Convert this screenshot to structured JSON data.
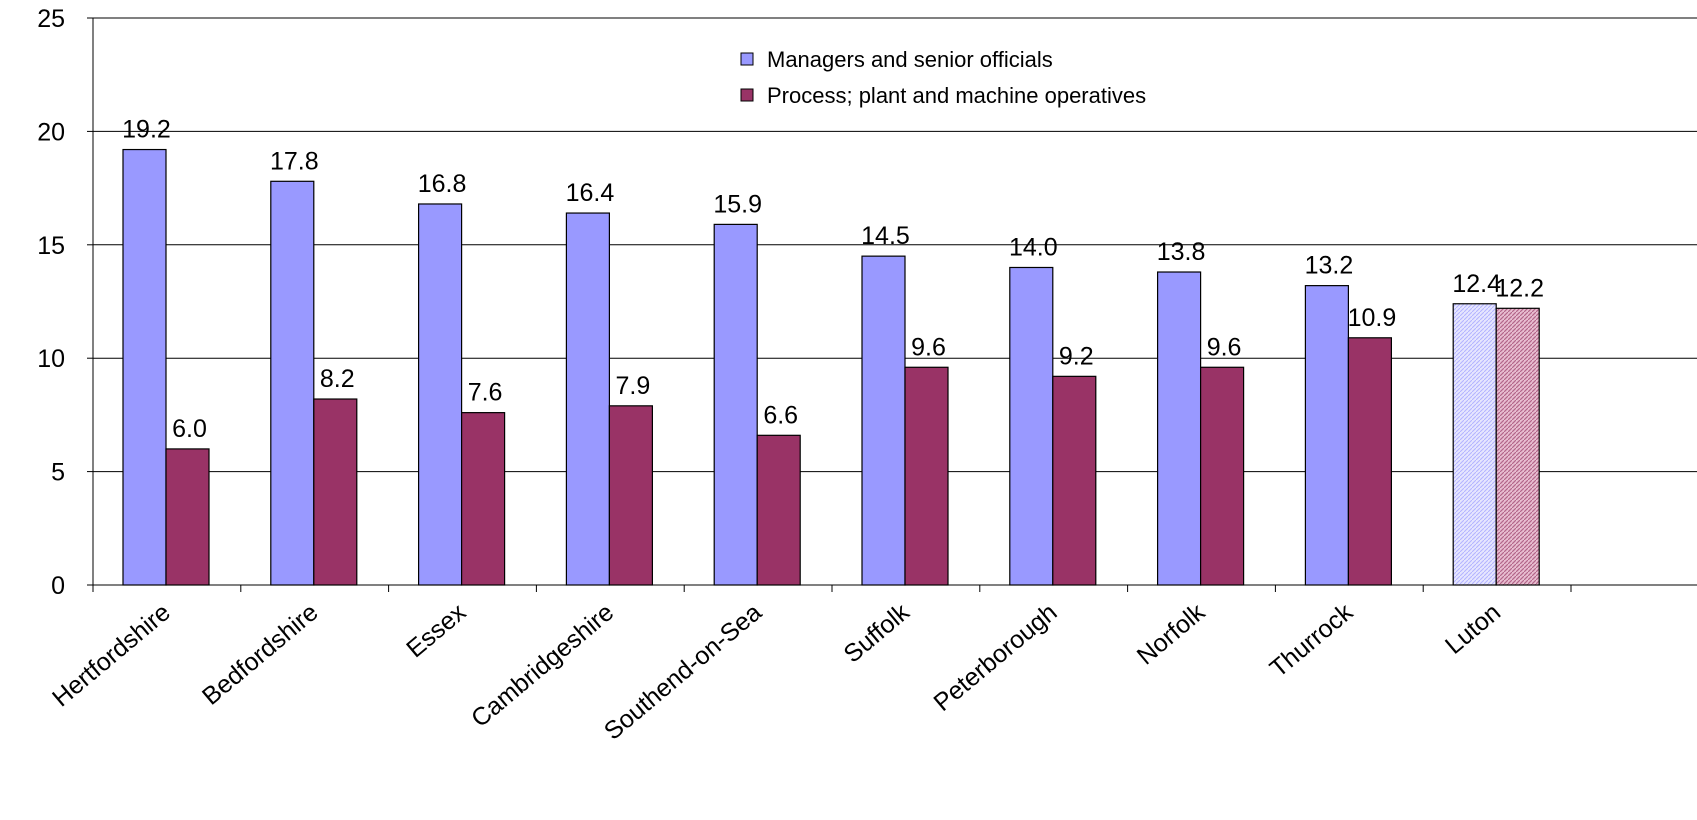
{
  "chart_data": {
    "type": "bar",
    "title": "",
    "xlabel": "",
    "ylabel": "",
    "ylim": [
      0,
      25
    ],
    "yticks": [
      0,
      5,
      10,
      15,
      20,
      25
    ],
    "grid": true,
    "legend_position": "top-center",
    "categories": [
      "Hertfordshire",
      "Bedfordshire",
      "Essex",
      "Cambridgeshire",
      "Southend-on-Sea",
      "Suffolk",
      "Peterborough",
      "Norfolk",
      "Thurrock",
      "Luton"
    ],
    "series": [
      {
        "name": "Managers and senior officials",
        "color": "#9999ff",
        "highlight_color": "#d9d9ff",
        "values": [
          19.2,
          17.8,
          16.8,
          16.4,
          15.9,
          14.5,
          14.0,
          13.8,
          13.2,
          12.4
        ],
        "labels": [
          "19.2",
          "17.8",
          "16.8",
          "16.4",
          "15.9",
          "14.5",
          "14.0",
          "13.8",
          "13.2",
          "12.4"
        ]
      },
      {
        "name": "Process; plant and machine operatives",
        "color": "#993366",
        "highlight_color": "#dba8bf",
        "values": [
          6.0,
          8.2,
          7.6,
          7.9,
          6.6,
          9.6,
          9.2,
          9.6,
          10.9,
          12.2
        ],
        "labels": [
          "6.0",
          "8.2",
          "7.6",
          "7.9",
          "6.6",
          "9.6",
          "9.2",
          "9.6",
          "10.9",
          "12.2"
        ]
      }
    ],
    "highlighted_category": "Luton"
  }
}
